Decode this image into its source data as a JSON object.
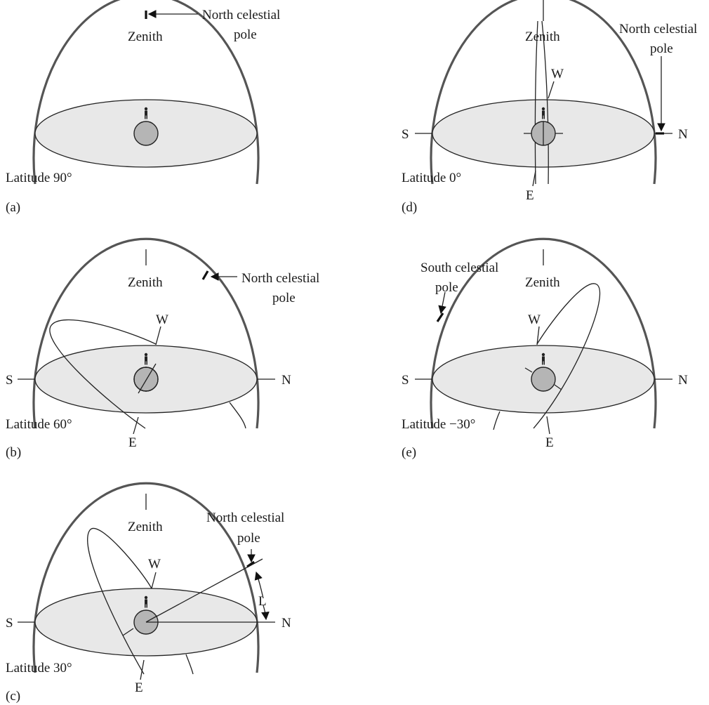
{
  "panels": {
    "a": {
      "tag": "(a)",
      "zenith": "Zenith",
      "latitude": "Latitude 90°",
      "pole_line1": "North celestial",
      "pole_line2": "pole"
    },
    "b": {
      "tag": "(b)",
      "zenith": "Zenith",
      "latitude": "Latitude 60°",
      "pole_line1": "North celestial",
      "pole_line2": "pole",
      "south": "S",
      "north": "N",
      "west": "W",
      "east": "E"
    },
    "c": {
      "tag": "(c)",
      "zenith": "Zenith",
      "latitude": "Latitude 30°",
      "pole_line1": "North celestial",
      "pole_line2": "pole",
      "south": "S",
      "north": "N",
      "west": "W",
      "east": "E",
      "angle": "L"
    },
    "d": {
      "tag": "(d)",
      "zenith": "Zenith",
      "latitude": "Latitude 0°",
      "pole_line1": "North celestial",
      "pole_line2": "pole",
      "south": "S",
      "north": "N",
      "west": "W",
      "east": "E"
    },
    "e": {
      "tag": "(e)",
      "zenith": "Zenith",
      "latitude": "Latitude −30°",
      "pole_line1": "South celestial",
      "pole_line2": "pole",
      "south": "S",
      "north": "N",
      "west": "W",
      "east": "E"
    }
  },
  "colors": {
    "horizon_fill": "#e8e8e8",
    "earth_fill": "#b5b5b5",
    "sphere_stroke": "#555555"
  }
}
